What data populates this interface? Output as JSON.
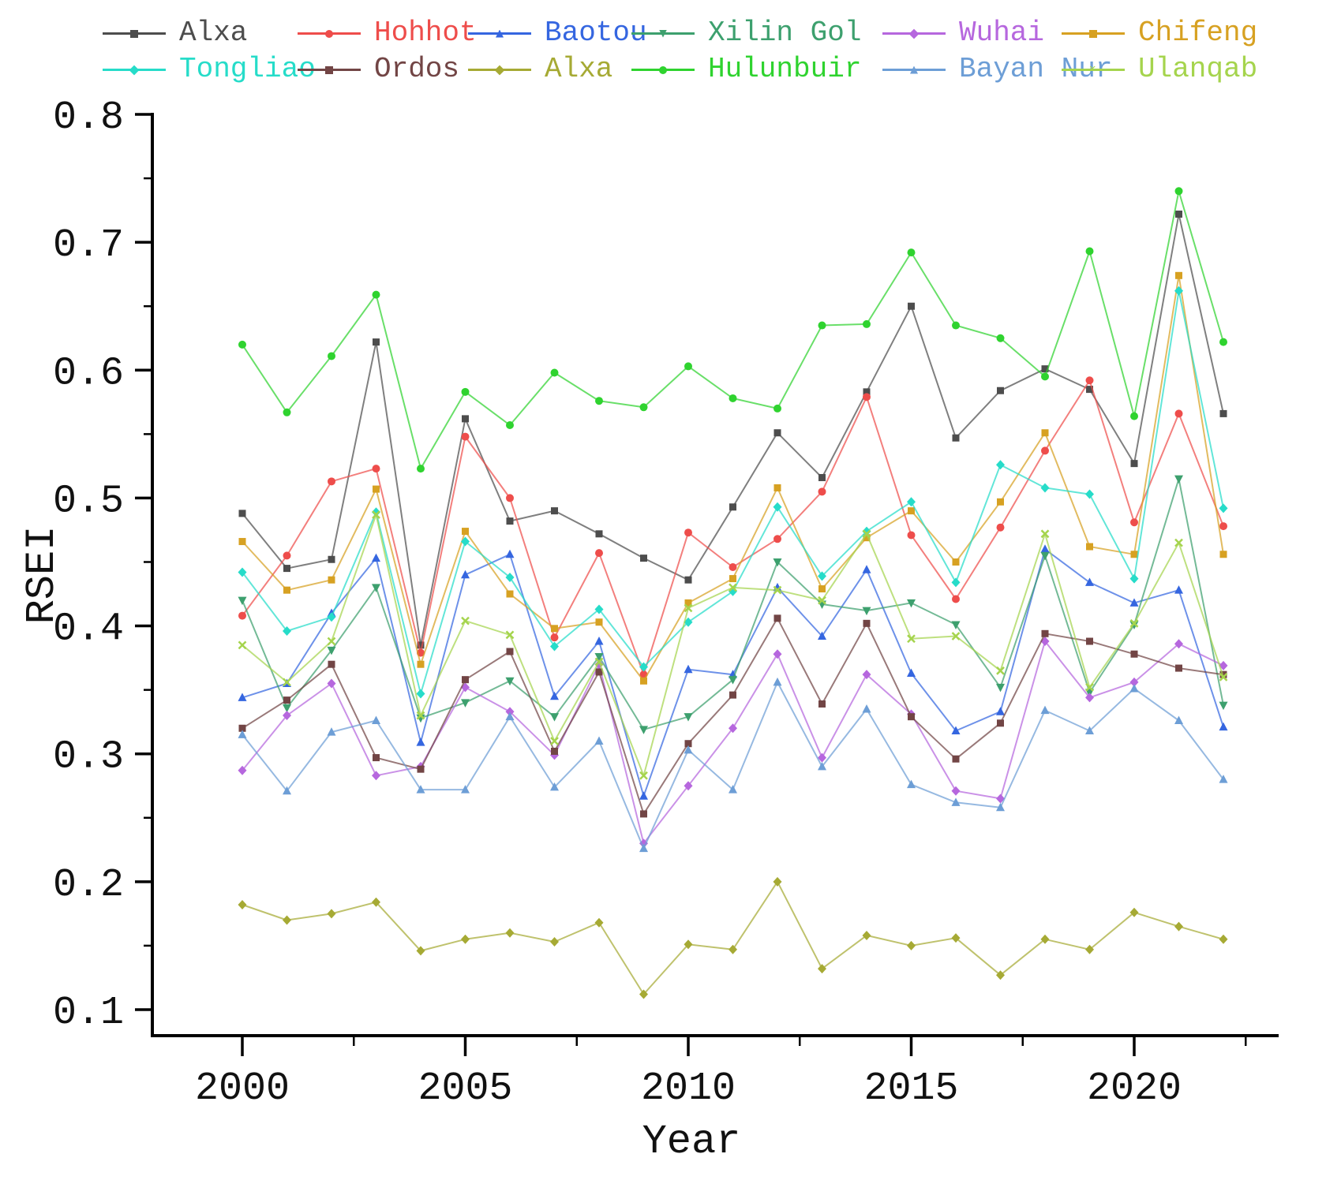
{
  "figure": {
    "background": "#ffffff",
    "text_color": "#111111"
  },
  "chart_data": {
    "type": "line",
    "title": "",
    "xlabel": "Year",
    "ylabel": "RSEI",
    "grid": false,
    "legend_position": "top",
    "xlim": [
      1998,
      2023.6
    ],
    "ylim": [
      0.05,
      0.8
    ],
    "xticks": [
      2000,
      2005,
      2010,
      2015,
      2020
    ],
    "xticks_minor": [
      2002.5,
      2007.5,
      2012.5,
      2017.5,
      2022.5
    ],
    "yticks": [
      0.8,
      0.7,
      0.6,
      0.5,
      0.4,
      0.3,
      0.2,
      0.1
    ],
    "yticks_minor": [
      0.75,
      0.65,
      0.55,
      0.45,
      0.35,
      0.25,
      0.15
    ],
    "x": [
      2000,
      2001,
      2002,
      2003,
      2004,
      2005,
      2006,
      2007,
      2008,
      2009,
      2010,
      2011,
      2012,
      2013,
      2014,
      2015,
      2016,
      2017,
      2018,
      2019,
      2020,
      2021,
      2022
    ],
    "series": [
      {
        "name": "Alxa",
        "color": "#4d4d4d",
        "marker": "square",
        "values": [
          0.488,
          0.445,
          0.452,
          0.622,
          0.385,
          0.562,
          0.482,
          0.49,
          0.472,
          0.453,
          0.436,
          0.493,
          0.551,
          0.516,
          0.583,
          0.65,
          0.547,
          0.584,
          0.601,
          0.585,
          0.527,
          0.722,
          0.566
        ]
      },
      {
        "name": "Hohhot",
        "color": "#ee4d4b",
        "marker": "circle",
        "values": [
          0.408,
          0.455,
          0.513,
          0.523,
          0.379,
          0.548,
          0.5,
          0.391,
          0.457,
          0.362,
          0.473,
          0.446,
          0.468,
          0.505,
          0.579,
          0.471,
          0.421,
          0.477,
          0.537,
          0.592,
          0.481,
          0.566,
          0.478
        ]
      },
      {
        "name": "Baotou",
        "color": "#3566e0",
        "marker": "triangle-up",
        "values": [
          0.344,
          0.355,
          0.41,
          0.453,
          0.309,
          0.44,
          0.456,
          0.345,
          0.388,
          0.267,
          0.366,
          0.362,
          0.43,
          0.392,
          0.444,
          0.363,
          0.318,
          0.333,
          0.46,
          0.434,
          0.418,
          0.428,
          0.321
        ]
      },
      {
        "name": "Xilin Gol",
        "color": "#3da06e",
        "marker": "triangle-down",
        "values": [
          0.42,
          0.336,
          0.381,
          0.43,
          0.328,
          0.34,
          0.357,
          0.329,
          0.376,
          0.319,
          0.329,
          0.358,
          0.45,
          0.417,
          0.412,
          0.418,
          0.401,
          0.352,
          0.455,
          0.348,
          0.401,
          0.515,
          0.338
        ]
      },
      {
        "name": "Wuhai",
        "color": "#b667de",
        "marker": "diamond",
        "values": [
          0.287,
          0.33,
          0.355,
          0.283,
          0.29,
          0.352,
          0.333,
          0.299,
          0.37,
          0.23,
          0.275,
          0.32,
          0.378,
          0.297,
          0.362,
          0.331,
          0.271,
          0.265,
          0.388,
          0.344,
          0.356,
          0.386,
          0.369
        ]
      },
      {
        "name": "Chifeng",
        "color": "#d7a122",
        "marker": "square",
        "values": [
          0.466,
          0.428,
          0.436,
          0.507,
          0.37,
          0.474,
          0.425,
          0.398,
          0.403,
          0.357,
          0.418,
          0.437,
          0.508,
          0.429,
          0.469,
          0.49,
          0.45,
          0.497,
          0.551,
          0.462,
          0.456,
          0.674,
          0.456
        ]
      },
      {
        "name": "Tongliao",
        "color": "#26dcc9",
        "marker": "diamond",
        "values": [
          0.442,
          0.396,
          0.407,
          0.489,
          0.347,
          0.466,
          0.438,
          0.384,
          0.413,
          0.368,
          0.403,
          0.427,
          0.493,
          0.439,
          0.474,
          0.497,
          0.434,
          0.526,
          0.508,
          0.503,
          0.437,
          0.662,
          0.492
        ]
      },
      {
        "name": "Ordos",
        "color": "#724545",
        "marker": "square",
        "values": [
          0.32,
          0.342,
          0.37,
          0.297,
          0.288,
          0.358,
          0.38,
          0.302,
          0.364,
          0.253,
          0.308,
          0.346,
          0.406,
          0.339,
          0.402,
          0.329,
          0.296,
          0.324,
          0.394,
          0.388,
          0.378,
          0.367,
          0.362
        ]
      },
      {
        "name": "Alxa",
        "color": "#a6aa34",
        "marker": "diamond",
        "values": [
          0.182,
          0.17,
          0.175,
          0.184,
          0.146,
          0.155,
          0.16,
          0.153,
          0.168,
          0.112,
          0.151,
          0.147,
          0.2,
          0.132,
          0.158,
          0.15,
          0.156,
          0.127,
          0.155,
          0.147,
          0.176,
          0.165,
          0.155
        ]
      },
      {
        "name": "Hulunbuir",
        "color": "#2fd32f",
        "marker": "circle",
        "values": [
          0.62,
          0.567,
          0.611,
          0.659,
          0.523,
          0.583,
          0.557,
          0.598,
          0.576,
          0.571,
          0.603,
          0.578,
          0.57,
          0.635,
          0.636,
          0.692,
          0.635,
          0.625,
          0.595,
          0.693,
          0.564,
          0.74,
          0.622
        ]
      },
      {
        "name": "Bayan Nur",
        "color": "#6d9ed6",
        "marker": "triangle-up",
        "values": [
          0.315,
          0.271,
          0.317,
          0.326,
          0.272,
          0.272,
          0.329,
          0.274,
          0.31,
          0.226,
          0.303,
          0.272,
          0.356,
          0.29,
          0.335,
          0.276,
          0.262,
          0.258,
          0.334,
          0.318,
          0.351,
          0.326,
          0.28
        ]
      },
      {
        "name": "Ulanqab",
        "color": "#a5d44d",
        "marker": "cross",
        "values": [
          0.385,
          0.356,
          0.388,
          0.487,
          0.33,
          0.404,
          0.393,
          0.31,
          0.372,
          0.283,
          0.414,
          0.43,
          0.428,
          0.42,
          0.472,
          0.39,
          0.392,
          0.365,
          0.472,
          0.352,
          0.402,
          0.465,
          0.36
        ]
      }
    ]
  }
}
